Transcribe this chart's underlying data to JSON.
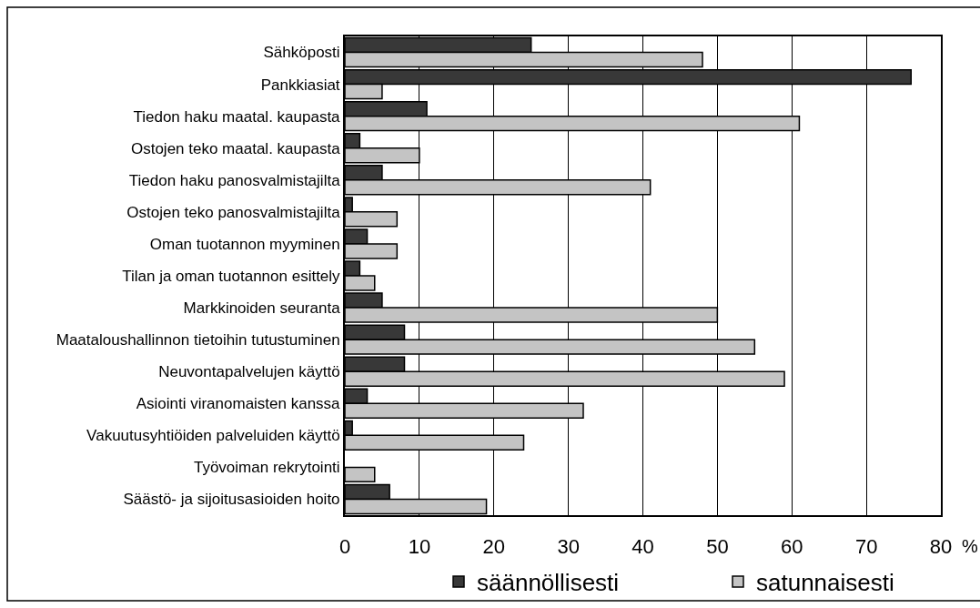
{
  "chart_data": {
    "type": "bar",
    "orientation": "horizontal",
    "categories": [
      "Sähköposti",
      "Pankkiasiat",
      "Tiedon haku maatal. kaupasta",
      "Ostojen teko maatal. kaupasta",
      "Tiedon haku panosvalmistajilta",
      "Ostojen teko panosvalmistajilta",
      "Oman tuotannon myyminen",
      "Tilan ja oman tuotannon esittely",
      "Markkinoiden seuranta",
      "Maataloushallinnon tietoihin tutustuminen",
      "Neuvontapalvelujen käyttö",
      "Asiointi viranomaisten kanssa",
      "Vakuutusyhtiöiden palveluiden käyttö",
      "Työvoiman rekrytointi",
      "Säästö- ja sijoitusasioiden hoito"
    ],
    "series": [
      {
        "name": "säännöllisesti",
        "color": "#383838",
        "values": [
          25,
          76,
          11,
          2,
          5,
          1,
          3,
          2,
          5,
          8,
          8,
          3,
          1,
          null,
          6
        ]
      },
      {
        "name": "satunnaisesti",
        "color": "#c4c4c4",
        "values": [
          48,
          5,
          61,
          10,
          41,
          7,
          7,
          4,
          50,
          55,
          59,
          32,
          24,
          4,
          19
        ]
      }
    ],
    "xlim": [
      0,
      80
    ],
    "xticks": [
      0,
      10,
      20,
      30,
      40,
      50,
      60,
      70,
      80
    ],
    "xlabel": "%",
    "grid": "x",
    "legend": "bottom"
  }
}
